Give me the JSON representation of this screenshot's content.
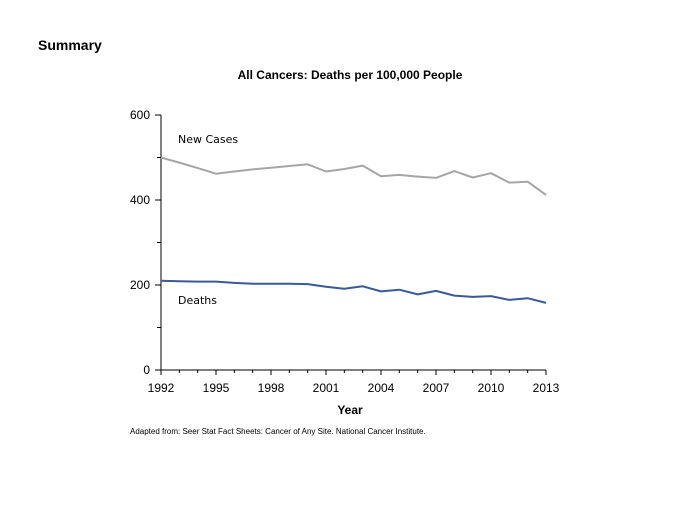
{
  "page": {
    "heading": "Summary",
    "source_note": "Adapted from: Seer Stat Fact Sheets: Cancer of Any Site. National Cancer Institute."
  },
  "chart_data": {
    "type": "line",
    "title": "All Cancers: Deaths per 100,000 People",
    "xlabel": "Year",
    "ylabel": "",
    "xlim": [
      1992,
      2013
    ],
    "ylim": [
      0,
      600
    ],
    "xticks": [
      1992,
      1995,
      1998,
      2001,
      2004,
      2007,
      2010,
      2013
    ],
    "yticks": [
      0,
      200,
      400,
      600
    ],
    "yticks_labeled": [
      0,
      200,
      400,
      600
    ],
    "yticks_minor": [
      100,
      300,
      500
    ],
    "grid": false,
    "x": [
      1992,
      1993,
      1994,
      1995,
      1996,
      1997,
      1998,
      1999,
      2000,
      2001,
      2002,
      2003,
      2004,
      2005,
      2006,
      2007,
      2008,
      2009,
      2010,
      2011,
      2012,
      2013
    ],
    "series": [
      {
        "name": "New Cases",
        "color": "#a6a6a6",
        "values": [
          500,
          488,
          475,
          462,
          467,
          472,
          476,
          480,
          484,
          467,
          473,
          481,
          456,
          459,
          455,
          452,
          468,
          453,
          463,
          441,
          443,
          412
        ]
      },
      {
        "name": "Deaths",
        "color": "#3b5998",
        "values": [
          210,
          209,
          208,
          208,
          205,
          203,
          203,
          203,
          202,
          196,
          191,
          197,
          185,
          189,
          178,
          186,
          175,
          172,
          174,
          165,
          169,
          158
        ]
      }
    ]
  }
}
